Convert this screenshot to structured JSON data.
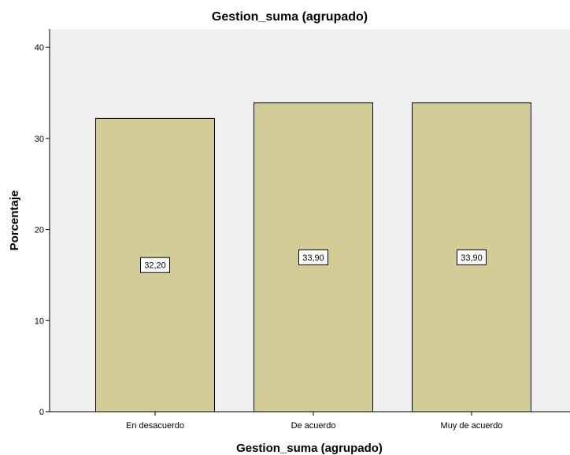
{
  "chart_data": {
    "type": "bar",
    "title": "Gestion_suma (agrupado)",
    "xlabel": "Gestion_suma (agrupado)",
    "ylabel": "Porcentaje",
    "categories": [
      "En desacuerdo",
      "De acuerdo",
      "Muy de acuerdo"
    ],
    "values": [
      32.2,
      33.9,
      33.9
    ],
    "data_labels": [
      "32,20",
      "33,90",
      "33,90"
    ],
    "ylim": [
      0,
      42
    ],
    "yticks": [
      0,
      10,
      20,
      30,
      40
    ],
    "grid": false,
    "colors": {
      "bar_fill": "#d2cc96",
      "bar_stroke": "#000000",
      "plot_background": "#f0f0f0"
    }
  }
}
